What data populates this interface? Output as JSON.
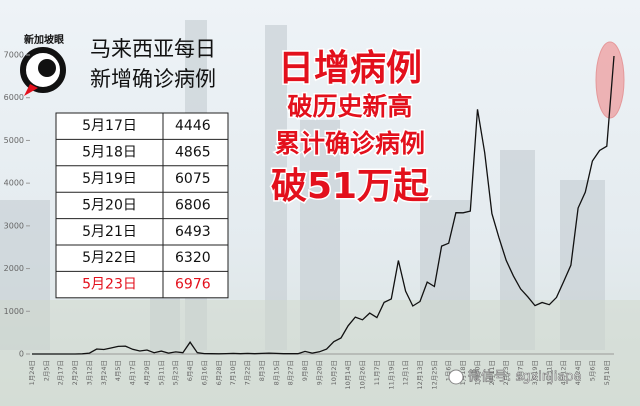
{
  "logo": {
    "text": "新加坡眼"
  },
  "title_lines": [
    "马来西亚每日",
    "新增确诊病例"
  ],
  "table": {
    "rows": [
      [
        "5月17日",
        4446
      ],
      [
        "5月18日",
        4865
      ],
      [
        "5月19日",
        6075
      ],
      [
        "5月20日",
        6806
      ],
      [
        "5月21日",
        6493
      ],
      [
        "5月22日",
        6320
      ],
      [
        "5月23日",
        6976
      ]
    ]
  },
  "headline": [
    "日增病例",
    "破历史新高",
    "累计确诊病例",
    "破51万起"
  ],
  "watermark": "微信号: sgxinjiapo",
  "chart_data": {
    "type": "line",
    "categories": [
      "1月24日",
      null,
      "2月5日",
      null,
      "2月17日",
      null,
      "2月29日",
      null,
      "3月12日",
      null,
      "3月24日",
      null,
      "4月5日",
      null,
      "4月17日",
      null,
      "4月29日",
      null,
      "5月11日",
      null,
      "5月23日",
      null,
      "6月4日",
      null,
      "6月16日",
      null,
      "6月28日",
      null,
      "7月10日",
      null,
      "7月22日",
      null,
      "8月3日",
      null,
      "8月15日",
      null,
      "8月27日",
      null,
      "9月8日",
      null,
      "9月20日",
      null,
      "10月2日",
      null,
      "10月14日",
      null,
      "10月26日",
      null,
      "11月7日",
      null,
      "11月19日",
      null,
      "12月1日",
      null,
      "12月13日",
      null,
      "12月25日",
      null,
      "1月6日",
      null,
      "1月18日",
      null,
      "1月30日",
      null,
      "2月11日",
      null,
      "2月23日",
      null,
      "3月7日",
      null,
      "3月19日",
      null,
      "3月31日",
      null,
      "4月12日",
      null,
      "4月24日",
      null,
      "5月6日",
      null,
      "5月18日",
      null
    ],
    "series": [
      {
        "color": "#111111",
        "values": [
          0,
          0,
          0,
          0,
          0,
          0,
          0,
          5,
          20,
          117,
          106,
          140,
          179,
          184,
          110,
          71,
          94,
          30,
          67,
          22,
          48,
          30,
          277,
          31,
          10,
          7,
          5,
          10,
          13,
          8,
          15,
          8,
          15,
          20,
          15,
          8,
          10,
          8,
          62,
          20,
          52,
          115,
          287,
          374,
          660,
          865,
          801,
          957,
          852,
          1208,
          1290,
          2188,
          1472,
          1123,
          1229,
          1683,
          1581,
          2525,
          2593,
          3309,
          3306,
          3346,
          5728,
          4712,
          3288,
          2720,
          2192,
          1828,
          1524,
          1340,
          1133,
          1205,
          1154,
          1325,
          1697,
          2078,
          3418,
          3788,
          4519,
          4765,
          4865,
          6976
        ]
      }
    ],
    "ylim": [
      0,
      7000
    ],
    "yticks": [
      0,
      1000,
      2000,
      3000,
      4000,
      5000,
      6000,
      7000
    ]
  }
}
